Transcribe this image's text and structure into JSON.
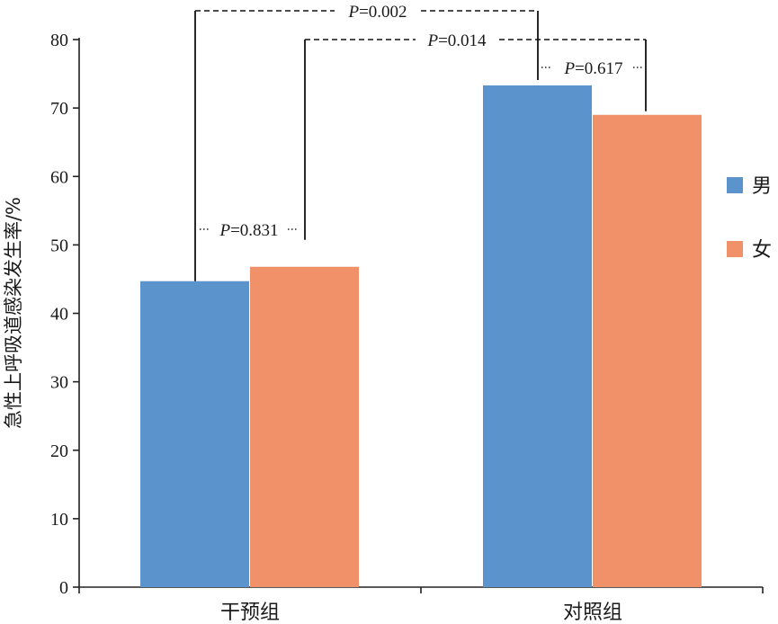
{
  "chart_data": {
    "type": "bar",
    "categories": [
      "干预组",
      "对照组"
    ],
    "series": [
      {
        "name": "男",
        "values": [
          44.7,
          73.3
        ],
        "color": "#5b93cc"
      },
      {
        "name": "女",
        "values": [
          46.8,
          69.0
        ],
        "color": "#f0916a"
      }
    ],
    "xlabel": "",
    "ylabel": "急性上呼吸道感染发生率/%",
    "ylim": [
      0,
      80
    ],
    "yticks": [
      0,
      10,
      20,
      30,
      40,
      50,
      60,
      70,
      80
    ],
    "grid": false,
    "legend_position": "right",
    "annotations": [
      {
        "p_symbol": "P",
        "p_rest": "=0.002",
        "from": "干预组 男",
        "to": "对照组 男"
      },
      {
        "p_symbol": "P",
        "p_rest": "=0.014",
        "from": "干预组 女",
        "to": "对照组 女"
      },
      {
        "p_symbol": "P",
        "p_rest": "=0.831",
        "from": "干预组 男",
        "to": "干预组 女"
      },
      {
        "p_symbol": "P",
        "p_rest": "=0.617",
        "from": "对照组 男",
        "to": "对照组 女"
      }
    ]
  }
}
